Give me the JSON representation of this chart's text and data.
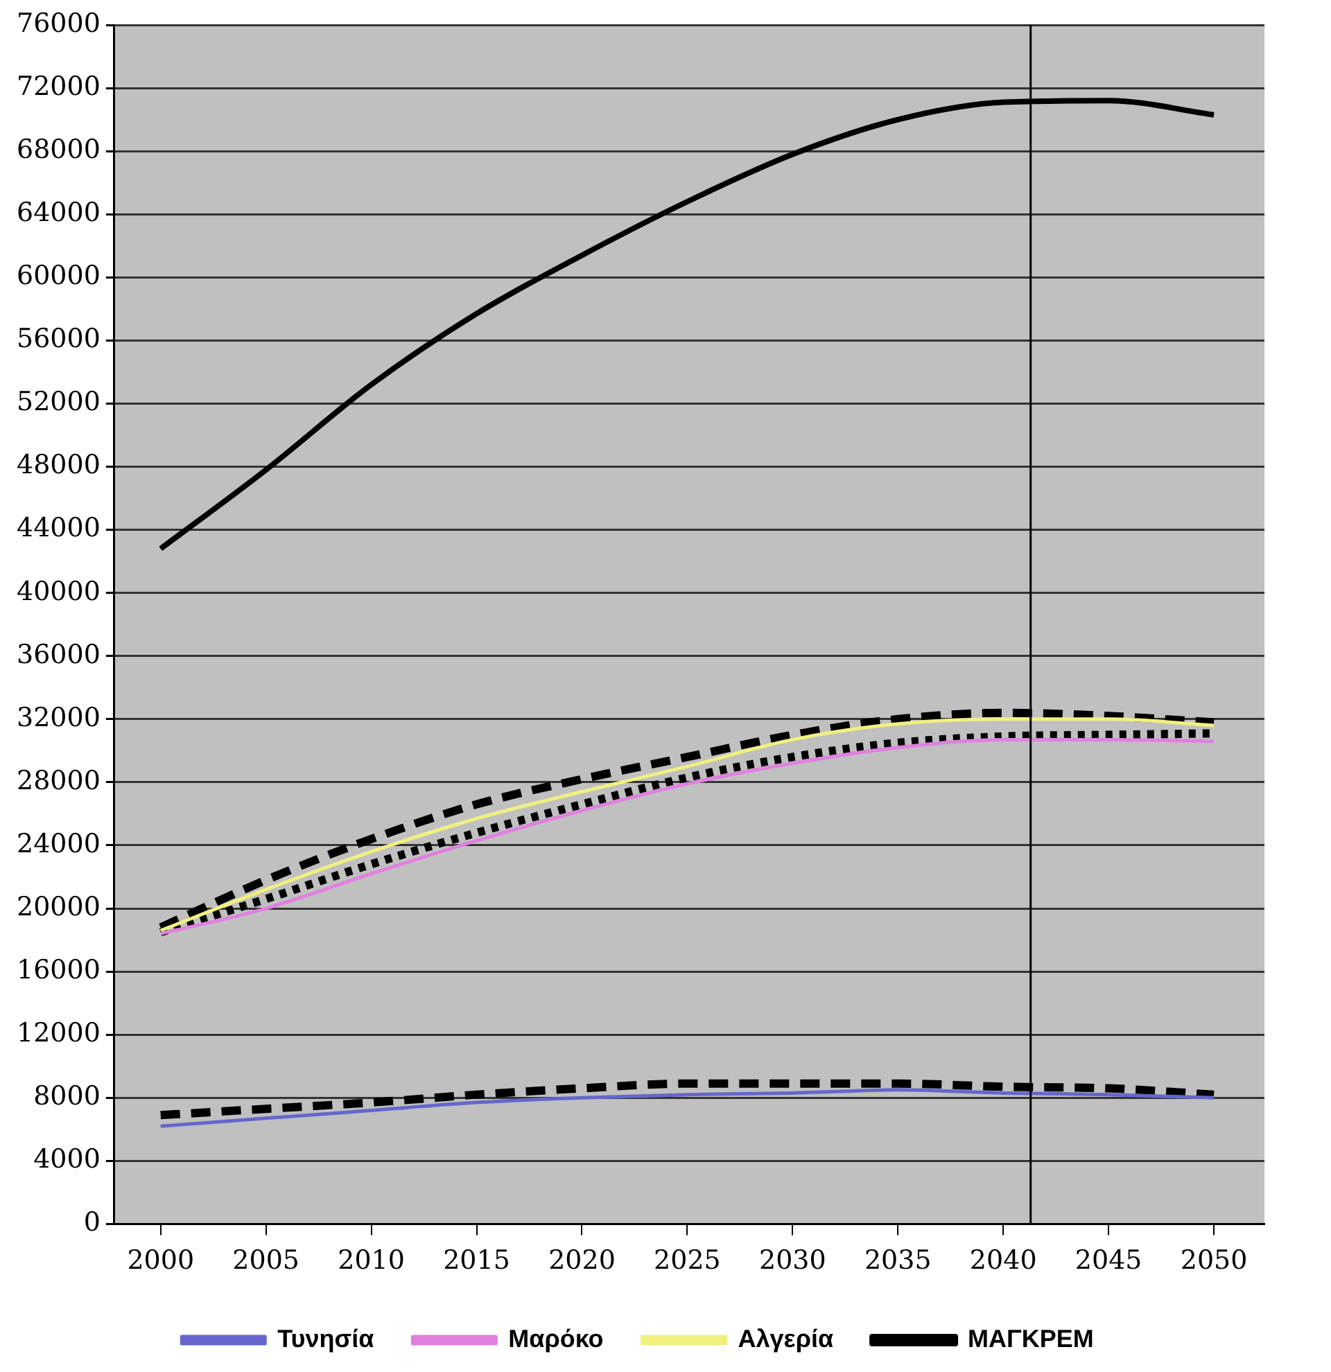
{
  "chart_data": {
    "type": "line",
    "x": [
      2000,
      2005,
      2010,
      2015,
      2020,
      2025,
      2030,
      2035,
      2040,
      2045,
      2050
    ],
    "xlim": [
      1997.8,
      2052.4
    ],
    "xticks": [
      2000,
      2005,
      2010,
      2015,
      2020,
      2025,
      2030,
      2035,
      2040,
      2045,
      2050
    ],
    "ylim": [
      0,
      76000
    ],
    "yticks": [
      0,
      4000,
      8000,
      12000,
      16000,
      20000,
      24000,
      28000,
      32000,
      36000,
      40000,
      44000,
      48000,
      52000,
      56000,
      60000,
      64000,
      68000,
      72000,
      76000
    ],
    "grid": "y",
    "legend": "bottom",
    "marker": "none",
    "ref_lines": [
      {
        "axis": "x",
        "value": 2041.3,
        "color": "#000000"
      }
    ],
    "series": [
      {
        "name": "Τυνησία",
        "color": "#6666cc",
        "line_style": "solid",
        "values": [
          6200,
          6700,
          7200,
          7700,
          8000,
          8200,
          8300,
          8500,
          8300,
          8200,
          8000
        ]
      },
      {
        "name": "Μαρόκο",
        "color": "#e080e0",
        "line_style": "solid",
        "values": [
          18400,
          20000,
          22200,
          24300,
          26200,
          27900,
          29200,
          30200,
          30700,
          30700,
          30600
        ]
      },
      {
        "name": "Αλγερία",
        "color": "#f0f080",
        "line_style": "solid",
        "values": [
          18600,
          21200,
          23600,
          25700,
          27400,
          29000,
          30700,
          31700,
          32000,
          32000,
          31600
        ]
      },
      {
        "name": "ΜΑΓΚΡΕΜ",
        "color": "#000000",
        "line_style": "solid",
        "values": [
          42800,
          47800,
          53200,
          57700,
          61400,
          64800,
          67800,
          70000,
          71100,
          71200,
          70300
        ]
      },
      {
        "color": "#000000",
        "line_style": "dashed",
        "values": [
          6900,
          7300,
          7700,
          8200,
          8600,
          8900,
          8900,
          8900,
          8700,
          8600,
          8200
        ]
      },
      {
        "color": "#000000",
        "line_style": "dotted",
        "values": [
          18500,
          20600,
          22800,
          24800,
          26600,
          28300,
          29600,
          30500,
          30900,
          31000,
          31100
        ]
      },
      {
        "color": "#000000",
        "line_style": "dashed",
        "values": [
          18800,
          21800,
          24400,
          26600,
          28200,
          29600,
          31000,
          32000,
          32400,
          32200,
          31800
        ]
      }
    ]
  }
}
